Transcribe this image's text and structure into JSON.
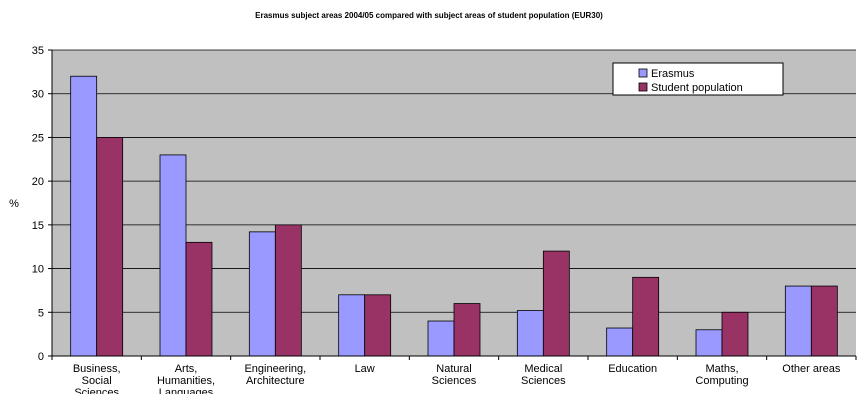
{
  "chart_data": {
    "type": "bar",
    "title": "Erasmus subject areas 2004/05 compared with subject areas of student population (EUR30)",
    "ylabel": "%",
    "xlabel": "",
    "ylim": [
      0,
      35
    ],
    "yticks": [
      0,
      5,
      10,
      15,
      20,
      25,
      30,
      35
    ],
    "grid": true,
    "legend_position": "top-right",
    "categories": [
      [
        "Business,",
        "Social",
        "Sciences"
      ],
      [
        "Arts,",
        "Humanities,",
        "Languages"
      ],
      [
        "Engineering,",
        "Architecture"
      ],
      [
        "Law"
      ],
      [
        "Natural",
        "Sciences"
      ],
      [
        "Medical",
        "Sciences"
      ],
      [
        "Education"
      ],
      [
        "Maths,",
        "Computing"
      ],
      [
        "Other areas"
      ]
    ],
    "series": [
      {
        "name": "Erasmus",
        "color": "#9999ff",
        "values": [
          32,
          23,
          14.2,
          7,
          4,
          5.2,
          3.2,
          3,
          8
        ]
      },
      {
        "name": "Student population",
        "color": "#993366",
        "values": [
          25,
          13,
          15,
          7,
          6,
          12,
          9,
          5,
          8
        ]
      }
    ],
    "plot_background": "#c0c0c0"
  }
}
